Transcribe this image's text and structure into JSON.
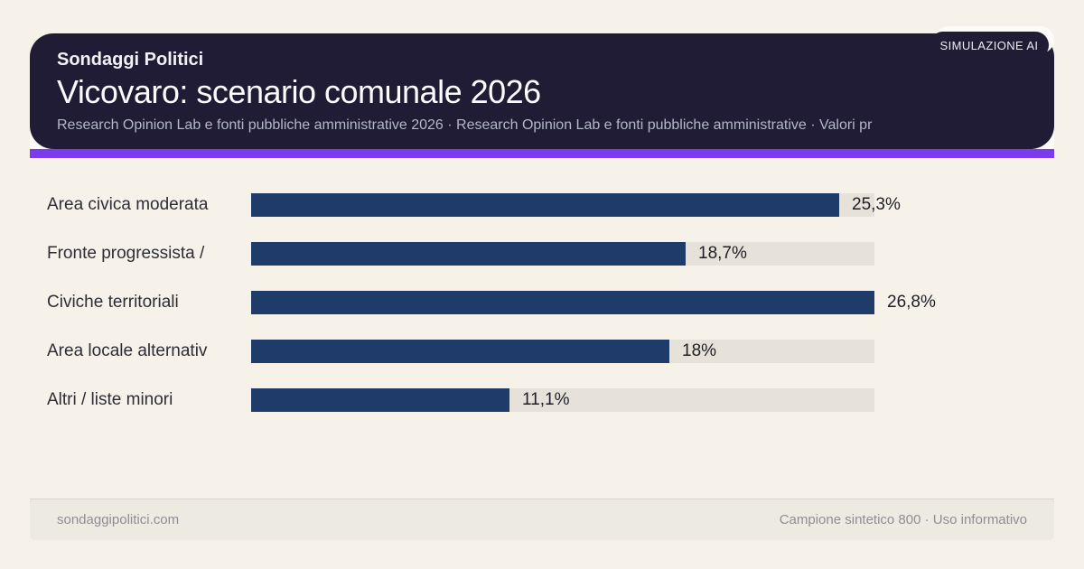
{
  "badge": {
    "label": "SIMULAZIONE AI"
  },
  "header": {
    "kicker": "Sondaggi Politici",
    "title": "Vicovaro: scenario comunale 2026",
    "subtitle": "Research Opinion Lab e fonti pubbliche amministrative 2026 · Research Opinion Lab e fonti pubbliche amministrative · Valori pr"
  },
  "chart_data": {
    "type": "bar",
    "orientation": "horizontal",
    "title": "Vicovaro: scenario comunale 2026",
    "categories": [
      "Area civica moderata",
      "Fronte progressista /",
      "Civiche territoriali",
      "Area locale alternativ",
      "Altri / liste minori"
    ],
    "values": [
      25.3,
      18.7,
      26.8,
      18,
      11.1
    ],
    "value_labels": [
      "25,3%",
      "18,7%",
      "26,8%",
      "18%",
      "11,1%"
    ],
    "unit": "%",
    "axis_max": 26.8,
    "grid": false,
    "legend": false,
    "colors": {
      "bar": "#1f3b69",
      "track": "#e6e2d9",
      "accent": "#7c3cee",
      "card_bg": "#201c35",
      "page_bg": "#f6f2ea"
    }
  },
  "footer": {
    "left": "sondaggipolitici.com",
    "right": "Campione sintetico 800 · Uso informativo"
  }
}
